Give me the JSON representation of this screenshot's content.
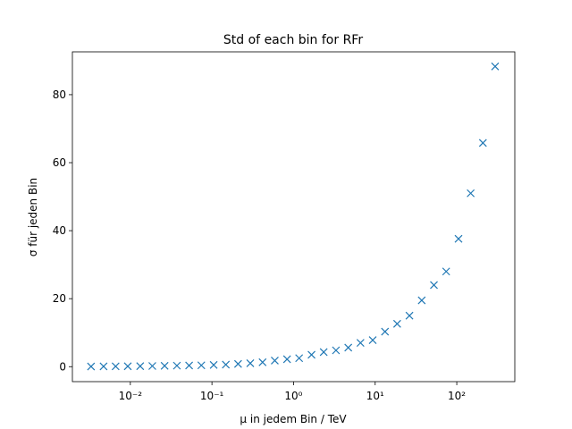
{
  "chart_data": {
    "type": "scatter",
    "title": "Std of each bin for RFr",
    "x_label": "μ in jedem Bin / TeV",
    "y_label": "σ für jeden Bin",
    "xscale": "log",
    "color": "#1f77b4",
    "marker": "x",
    "x": [
      0.0033,
      0.0047,
      0.0066,
      0.0093,
      0.0132,
      0.0186,
      0.0263,
      0.0372,
      0.0525,
      0.0741,
      0.105,
      0.148,
      0.209,
      0.295,
      0.417,
      0.589,
      0.832,
      1.17,
      1.66,
      2.34,
      3.31,
      4.68,
      6.61,
      9.33,
      13.2,
      18.6,
      26.3,
      37.2,
      52.5,
      74.1,
      105,
      148,
      209,
      295
    ],
    "values": [
      0.05,
      0.08,
      0.1,
      0.12,
      0.15,
      0.2,
      0.25,
      0.3,
      0.35,
      0.4,
      0.5,
      0.6,
      0.8,
      1.0,
      1.3,
      1.8,
      2.2,
      2.5,
      3.5,
      4.3,
      4.8,
      5.6,
      7.0,
      7.8,
      10.3,
      12.6,
      15.0,
      19.5,
      24.0,
      28.0,
      37.6,
      51.0,
      65.8,
      88.3
    ],
    "xlim": [
      0.00195,
      514
    ],
    "ylim": [
      -4.4,
      92.6
    ],
    "xticks": [
      {
        "value": 0.01,
        "label": "10⁻²"
      },
      {
        "value": 0.1,
        "label": "10⁻¹"
      },
      {
        "value": 1,
        "label": "10⁰"
      },
      {
        "value": 10,
        "label": "10¹"
      },
      {
        "value": 100,
        "label": "10²"
      }
    ],
    "yticks": [
      0,
      20,
      40,
      60,
      80
    ]
  }
}
